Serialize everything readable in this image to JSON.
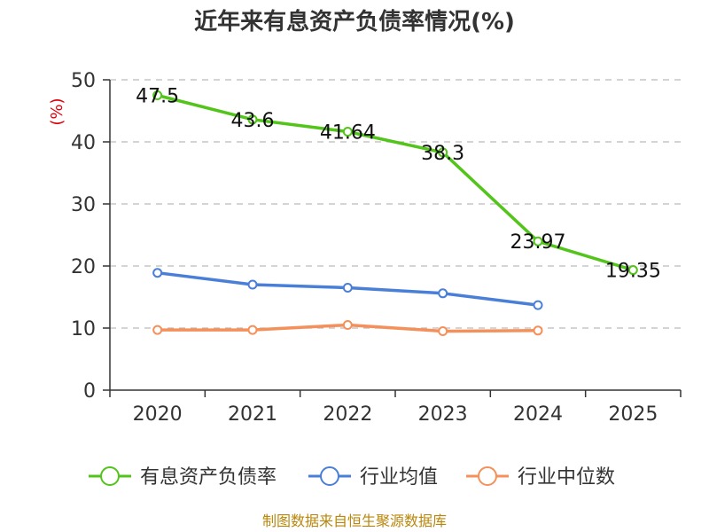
{
  "chart_data": {
    "type": "line",
    "title": "近年来有息资产负债率情况(%)",
    "ylabel": "(%)",
    "xlabel": "",
    "categories": [
      "2020",
      "2021",
      "2022",
      "2023",
      "2024",
      "2025"
    ],
    "ylim": [
      0,
      50
    ],
    "yticks": [
      0,
      10,
      20,
      30,
      40,
      50
    ],
    "grid": true,
    "legend_position": "bottom",
    "series": [
      {
        "name": "有息资产负债率",
        "color": "#52c41a",
        "values": [
          47.5,
          43.6,
          41.64,
          38.3,
          23.97,
          19.35
        ],
        "labels": [
          "47.5",
          "43.6",
          "41.64",
          "38.3",
          "23.97",
          "19.35"
        ]
      },
      {
        "name": "行业均值",
        "color": "#4a7fd8",
        "values": [
          18.9,
          17.0,
          16.5,
          15.6,
          13.7,
          null
        ]
      },
      {
        "name": "行业中位数",
        "color": "#f5905a",
        "values": [
          9.7,
          9.7,
          10.5,
          9.5,
          9.6,
          null
        ]
      }
    ]
  },
  "source_text": "制图数据来自恒生聚源数据库"
}
